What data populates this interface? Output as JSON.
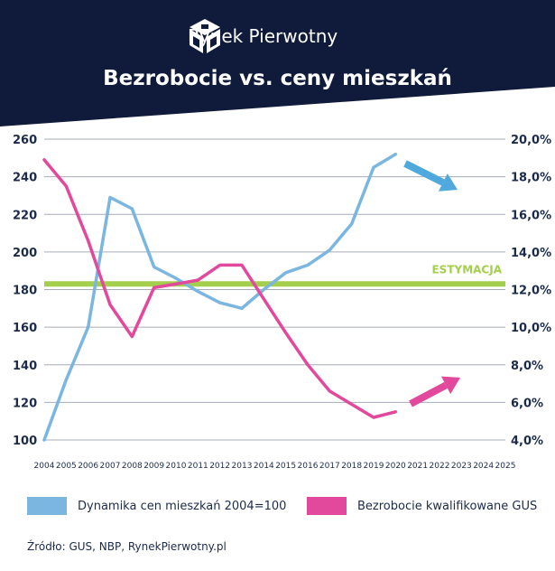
{
  "brand": {
    "name": "Rynek Pierwotny",
    "logo_icon": "cube-logo-icon"
  },
  "chart_data": {
    "type": "line",
    "title": "Bezrobocie vs. ceny mieszkań",
    "x": [
      2004,
      2005,
      2006,
      2007,
      2008,
      2009,
      2010,
      2011,
      2012,
      2013,
      2014,
      2015,
      2016,
      2017,
      2018,
      2019,
      2020
    ],
    "x_ticks": [
      "2004",
      "2005",
      "2006",
      "2007",
      "2008",
      "2009",
      "2010",
      "2011",
      "2012",
      "2013",
      "2014",
      "2015",
      "2016",
      "2017",
      "2018",
      "2019",
      "2020",
      "2021",
      "2022",
      "2023",
      "2024",
      "2025"
    ],
    "left_axis": {
      "ylim": [
        100,
        260
      ],
      "ticks": [
        "100",
        "120",
        "140",
        "160",
        "180",
        "200",
        "220",
        "240",
        "260"
      ]
    },
    "right_axis": {
      "ylim": [
        4.0,
        20.0
      ],
      "ticks": [
        "4,0%",
        "6,0%",
        "8,0%",
        "10,0%",
        "12,0%",
        "14,0%",
        "16,0%",
        "18,0%",
        "20,0%"
      ]
    },
    "series": [
      {
        "name": "Dynamika cen mieszkań 2004=100",
        "axis": "left",
        "color": "#7ab6e0",
        "values": [
          100,
          132,
          160,
          229,
          223,
          192,
          186,
          179,
          173,
          170,
          180,
          189,
          193,
          201,
          215,
          245,
          252
        ]
      },
      {
        "name": "Bezrobocie kwalifikowane GUS",
        "axis": "right",
        "color": "#e2489b",
        "values": [
          18.9,
          17.5,
          14.6,
          11.2,
          9.5,
          12.1,
          12.3,
          12.5,
          13.3,
          13.3,
          11.5,
          9.7,
          8.0,
          6.6,
          5.9,
          5.2,
          5.5
        ]
      }
    ],
    "reference_line": {
      "label": "ESTYMACJA",
      "value": 183,
      "axis": "left",
      "color": "#a4cf4c"
    },
    "trend_arrows": [
      {
        "series": "Dynamika cen mieszkań 2004=100",
        "direction": "down",
        "color": "#4fa9dd"
      },
      {
        "series": "Bezrobocie kwalifikowane GUS",
        "direction": "up",
        "color": "#e2489b"
      }
    ],
    "grid": true,
    "legend": "bottom"
  },
  "source": "Źródło: GUS, NBP, RynekPierwotny.pl"
}
